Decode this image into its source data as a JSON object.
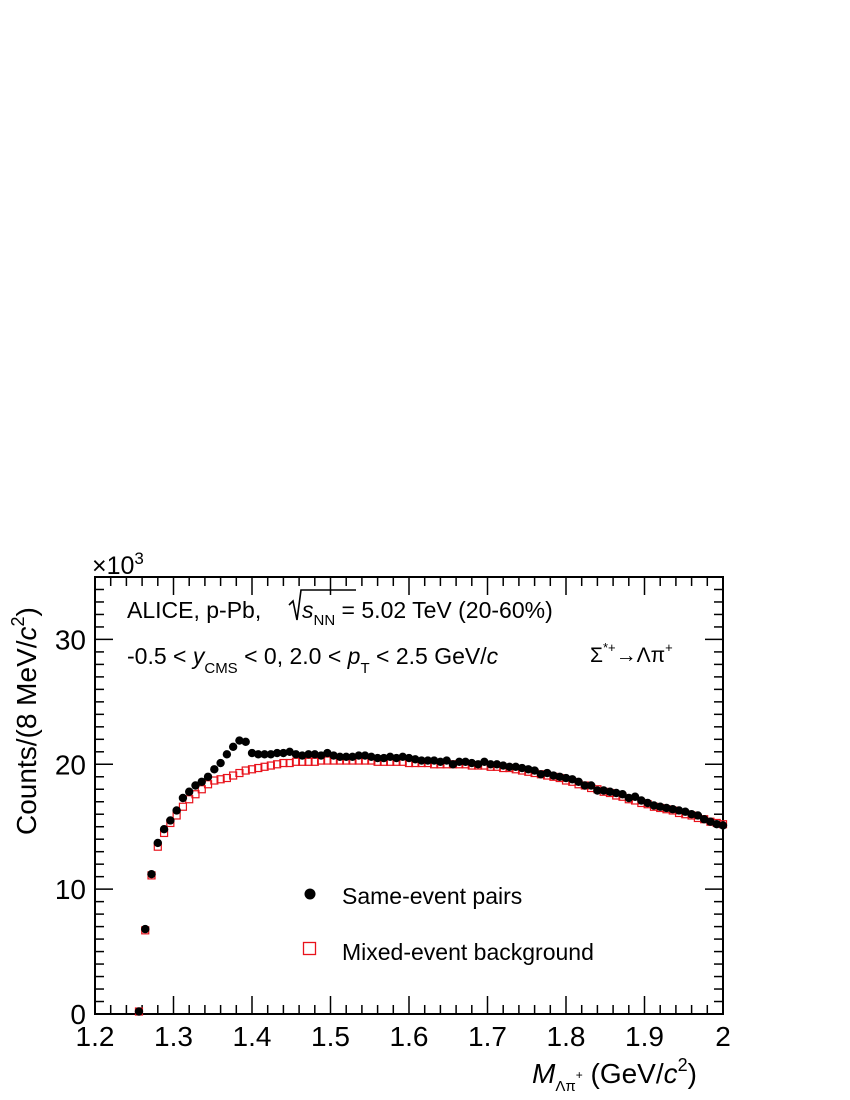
{
  "chart_data": {
    "type": "scatter",
    "xlim": [
      1.2,
      2.0
    ],
    "ylim": [
      0,
      35
    ],
    "y_multiplier": "×10",
    "y_multiplier_exp": "3",
    "x_ticks": [
      {
        "value": 1.2,
        "label": "1.2"
      },
      {
        "value": 1.3,
        "label": "1.3"
      },
      {
        "value": 1.4,
        "label": "1.4"
      },
      {
        "value": 1.5,
        "label": "1.5"
      },
      {
        "value": 1.6,
        "label": "1.6"
      },
      {
        "value": 1.7,
        "label": "1.7"
      },
      {
        "value": 1.8,
        "label": "1.8"
      },
      {
        "value": 1.9,
        "label": "1.9"
      },
      {
        "value": 2.0,
        "label": "2"
      }
    ],
    "y_ticks": [
      {
        "value": 0,
        "label": "0"
      },
      {
        "value": 10,
        "label": "10"
      },
      {
        "value": 20,
        "label": "20"
      },
      {
        "value": 30,
        "label": "30"
      }
    ],
    "xlabel": {
      "main": "M",
      "sub": "Λπ",
      "sup": "+",
      "rest": " (GeV/",
      "c": "c",
      "sq": "2",
      "close": ")"
    },
    "ylabel": {
      "main": "Counts/(8 MeV/",
      "c": "c",
      "sq": "2",
      "close": ")"
    },
    "annotation_line1": {
      "a": "ALICE, p-Pb, ",
      "s": "s",
      "sub": "NN",
      "b": " = 5.02 TeV (20-60%)"
    },
    "annotation_line2": {
      "a": "-0.5 < ",
      "y": "y",
      "ysub": "CMS",
      "b": " < 0, 2.0 < ",
      "p": "p",
      "psub": "T",
      "c": " < 2.5 GeV/",
      "cc": "c"
    },
    "decay_label": {
      "sigma": "Σ",
      "sup": "*+",
      "arrow": "→Λπ",
      "sup2": "+"
    },
    "legend": [
      {
        "label": "Same-event pairs",
        "marker": "filled-circle",
        "color": "#000000"
      },
      {
        "label": "Mixed-event background",
        "marker": "open-square",
        "color": "#e8121b"
      }
    ],
    "series": [
      {
        "name": "Same-event pairs",
        "color": "#000000",
        "x": [
          1.256,
          1.264,
          1.272,
          1.28,
          1.288,
          1.296,
          1.304,
          1.312,
          1.32,
          1.328,
          1.336,
          1.344,
          1.352,
          1.36,
          1.368,
          1.376,
          1.384,
          1.392,
          1.4,
          1.408,
          1.416,
          1.424,
          1.432,
          1.44,
          1.448,
          1.456,
          1.464,
          1.472,
          1.48,
          1.488,
          1.496,
          1.504,
          1.512,
          1.52,
          1.528,
          1.536,
          1.544,
          1.552,
          1.56,
          1.568,
          1.576,
          1.584,
          1.592,
          1.6,
          1.608,
          1.616,
          1.624,
          1.632,
          1.64,
          1.648,
          1.656,
          1.664,
          1.672,
          1.68,
          1.688,
          1.696,
          1.704,
          1.712,
          1.72,
          1.728,
          1.736,
          1.744,
          1.752,
          1.76,
          1.768,
          1.776,
          1.784,
          1.792,
          1.8,
          1.808,
          1.816,
          1.824,
          1.832,
          1.84,
          1.848,
          1.856,
          1.864,
          1.872,
          1.88,
          1.888,
          1.896,
          1.904,
          1.912,
          1.92,
          1.928,
          1.936,
          1.944,
          1.952,
          1.96,
          1.968,
          1.976,
          1.984,
          1.992,
          2.0
        ],
        "values": [
          0.2,
          6.8,
          11.2,
          13.7,
          14.8,
          15.5,
          16.3,
          17.3,
          17.8,
          18.3,
          18.6,
          19.0,
          19.6,
          20.1,
          20.8,
          21.4,
          21.9,
          21.8,
          20.9,
          20.8,
          20.8,
          20.8,
          20.9,
          20.9,
          21.0,
          20.8,
          20.7,
          20.8,
          20.8,
          20.7,
          20.9,
          20.7,
          20.6,
          20.6,
          20.6,
          20.7,
          20.7,
          20.6,
          20.5,
          20.5,
          20.6,
          20.5,
          20.6,
          20.5,
          20.4,
          20.3,
          20.3,
          20.3,
          20.2,
          20.3,
          20.0,
          20.2,
          20.2,
          20.1,
          20.0,
          20.2,
          20.0,
          20.0,
          19.9,
          19.8,
          19.8,
          19.7,
          19.6,
          19.5,
          19.2,
          19.3,
          19.1,
          19.0,
          18.9,
          18.8,
          18.6,
          18.3,
          18.3,
          17.9,
          17.9,
          17.8,
          17.7,
          17.6,
          17.3,
          17.4,
          17.1,
          16.9,
          16.7,
          16.6,
          16.5,
          16.4,
          16.3,
          16.2,
          16.0,
          15.9,
          15.6,
          15.4,
          15.2,
          15.1
        ]
      },
      {
        "name": "Mixed-event background",
        "color": "#e8121b",
        "x": [
          1.256,
          1.264,
          1.272,
          1.28,
          1.288,
          1.296,
          1.304,
          1.312,
          1.32,
          1.328,
          1.336,
          1.344,
          1.352,
          1.36,
          1.368,
          1.376,
          1.384,
          1.392,
          1.4,
          1.408,
          1.416,
          1.424,
          1.432,
          1.44,
          1.448,
          1.456,
          1.464,
          1.472,
          1.48,
          1.488,
          1.496,
          1.504,
          1.512,
          1.52,
          1.528,
          1.536,
          1.544,
          1.552,
          1.56,
          1.568,
          1.576,
          1.584,
          1.592,
          1.6,
          1.608,
          1.616,
          1.624,
          1.632,
          1.64,
          1.648,
          1.656,
          1.664,
          1.672,
          1.68,
          1.688,
          1.696,
          1.704,
          1.712,
          1.72,
          1.728,
          1.736,
          1.744,
          1.752,
          1.76,
          1.768,
          1.776,
          1.784,
          1.792,
          1.8,
          1.808,
          1.816,
          1.824,
          1.832,
          1.84,
          1.848,
          1.856,
          1.864,
          1.872,
          1.88,
          1.888,
          1.896,
          1.904,
          1.912,
          1.92,
          1.928,
          1.936,
          1.944,
          1.952,
          1.96,
          1.968,
          1.976,
          1.984,
          1.992,
          2.0
        ],
        "values": [
          0.2,
          6.7,
          11.1,
          13.4,
          14.5,
          15.3,
          15.9,
          16.6,
          17.2,
          17.6,
          18.0,
          18.4,
          18.7,
          18.8,
          18.9,
          19.1,
          19.3,
          19.5,
          19.6,
          19.7,
          19.8,
          19.9,
          20.0,
          20.1,
          20.1,
          20.2,
          20.2,
          20.2,
          20.2,
          20.3,
          20.3,
          20.3,
          20.3,
          20.3,
          20.3,
          20.3,
          20.3,
          20.3,
          20.2,
          20.2,
          20.2,
          20.2,
          20.2,
          20.1,
          20.1,
          20.1,
          20.1,
          20.0,
          20.0,
          20.0,
          20.0,
          20.0,
          20.0,
          19.9,
          19.9,
          19.9,
          19.8,
          19.8,
          19.7,
          19.7,
          19.6,
          19.5,
          19.4,
          19.3,
          19.2,
          19.1,
          19.0,
          18.9,
          18.7,
          18.6,
          18.4,
          18.3,
          18.1,
          18.0,
          17.8,
          17.7,
          17.5,
          17.4,
          17.2,
          17.1,
          16.9,
          16.8,
          16.6,
          16.5,
          16.4,
          16.3,
          16.1,
          16.0,
          15.9,
          15.7,
          15.6,
          15.4,
          15.3,
          15.2
        ]
      }
    ]
  }
}
